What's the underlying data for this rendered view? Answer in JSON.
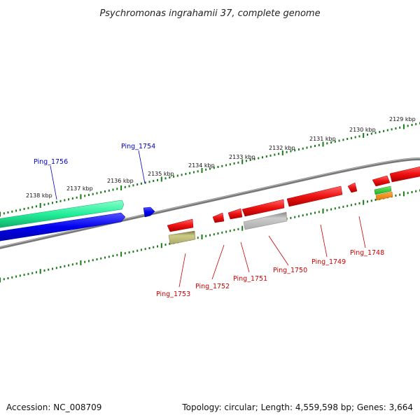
{
  "title": "Psychromonas ingrahamii 37, complete genome",
  "footer": {
    "accession": "Accession: NC_008709",
    "topology": "Topology: circular; Length: 4,559,598 bp; Genes: 3,664"
  },
  "colors": {
    "backbone": "#808080",
    "tick": "#1a7a1a",
    "cds": "#ee1111",
    "cds_blue": "#0000ee",
    "rna_teal": "#22ee99",
    "pseudo_grey": "#bbbbbb",
    "olive": "#bbbb66",
    "green_small": "#33cc33",
    "orange_small": "#ff8800",
    "label_fwd": "#0000cc",
    "label_rev": "#cc0000"
  },
  "scale": {
    "outer_kbp": [
      "2129 kbp",
      "2130 kbp",
      "2131 kbp",
      "2132 kbp",
      "2133 kbp",
      "2134 kbp",
      "2135 kbp",
      "2136 kbp",
      "2137 kbp",
      "2138 kbp"
    ]
  },
  "genes": {
    "forward": [
      {
        "label": "Ping_1756",
        "color": "rna_teal"
      },
      {
        "label": "Ping_1754",
        "color": "cds_blue"
      }
    ],
    "reverse": [
      {
        "label": "Ping_1753",
        "color": "olive"
      },
      {
        "label": "Ping_1752",
        "color": "cds"
      },
      {
        "label": "Ping_1751",
        "color": "cds"
      },
      {
        "label": "Ping_1750",
        "color": "pseudo_grey"
      },
      {
        "label": "Ping_1749",
        "color": "cds"
      },
      {
        "label": "Ping_1748",
        "color": "cds"
      }
    ]
  }
}
